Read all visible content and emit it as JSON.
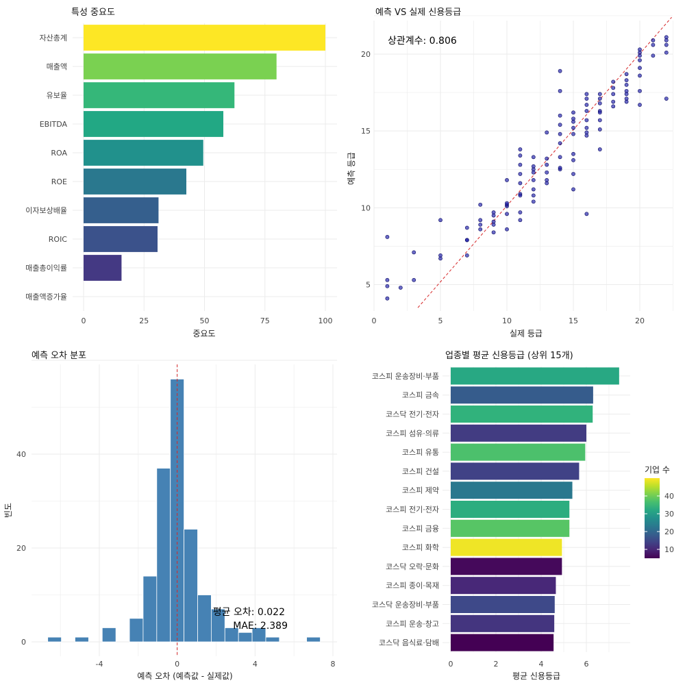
{
  "chart_data": [
    {
      "type": "bar",
      "orientation": "horizontal",
      "title": "특성 중요도",
      "xlabel": "중요도",
      "ylabel": "",
      "xlim": [
        0,
        100
      ],
      "xticks": [
        0,
        25,
        50,
        75,
        100
      ],
      "categories": [
        "자산총계",
        "매출액",
        "유보율",
        "EBITDA",
        "ROA",
        "ROE",
        "이자보상배율",
        "ROIC",
        "매출총이익률",
        "매출액증가율"
      ],
      "values": [
        100,
        79.8,
        62.4,
        57.8,
        49.5,
        42.5,
        31,
        30.6,
        15.7,
        0
      ],
      "colors": [
        "#fde725",
        "#7ad151",
        "#35b779",
        "#22a884",
        "#21918c",
        "#2a788e",
        "#355f8d",
        "#3b528b",
        "#443983",
        "#440154"
      ],
      "grid": true
    },
    {
      "type": "scatter",
      "title": "예측 VS 실제 신용등급",
      "xlabel": "실제 등급",
      "ylabel": "예측 등급",
      "xlim": [
        0,
        22.5
      ],
      "ylim": [
        3.5,
        22.5
      ],
      "xticks": [
        0,
        5,
        10,
        15,
        20
      ],
      "yticks": [
        5,
        10,
        15,
        20
      ],
      "annotation": "상관계수: 0.806",
      "reference_line": "y = x",
      "point_color": "#1a1aa8",
      "grid": true,
      "points": [
        [
          1,
          8.1
        ],
        [
          1,
          5.3
        ],
        [
          1,
          4.9
        ],
        [
          1,
          4.1
        ],
        [
          2,
          4.8
        ],
        [
          3,
          7.1
        ],
        [
          3,
          5.3
        ],
        [
          5,
          9.2
        ],
        [
          5,
          6.7
        ],
        [
          5,
          6.9
        ],
        [
          7,
          7.9
        ],
        [
          7,
          7.9
        ],
        [
          7,
          8.7
        ],
        [
          7,
          6.9
        ],
        [
          8,
          8.6
        ],
        [
          8,
          9.2
        ],
        [
          8,
          10.2
        ],
        [
          8,
          8.9
        ],
        [
          9,
          9.7
        ],
        [
          9,
          9.5
        ],
        [
          9,
          9.1
        ],
        [
          9,
          8.9
        ],
        [
          9,
          8.4
        ],
        [
          10,
          10.1
        ],
        [
          10,
          10.2
        ],
        [
          10,
          10.3
        ],
        [
          10,
          11.8
        ],
        [
          10,
          9.6
        ],
        [
          10,
          8.6
        ],
        [
          11,
          9.7
        ],
        [
          11,
          10.9
        ],
        [
          11,
          11.6
        ],
        [
          11,
          10.8
        ],
        [
          11,
          12.2
        ],
        [
          11,
          13.4
        ],
        [
          11,
          13.8
        ],
        [
          11,
          12.8
        ],
        [
          11,
          9.2
        ],
        [
          12,
          11.2
        ],
        [
          12,
          11.8
        ],
        [
          12,
          12.3
        ],
        [
          12,
          12.5
        ],
        [
          12,
          12.7
        ],
        [
          12,
          13.3
        ],
        [
          12,
          10.8
        ],
        [
          12,
          10.4
        ],
        [
          13,
          11.6
        ],
        [
          13,
          12.3
        ],
        [
          13,
          12.8
        ],
        [
          13,
          13.2
        ],
        [
          13,
          11.8
        ],
        [
          13,
          14.9
        ],
        [
          14,
          12.5
        ],
        [
          14,
          13.3
        ],
        [
          14,
          14.2
        ],
        [
          14,
          14.8
        ],
        [
          14,
          16.0
        ],
        [
          14,
          15.4
        ],
        [
          14,
          18.9
        ],
        [
          14,
          17.6
        ],
        [
          14,
          12.6
        ],
        [
          15,
          15.2
        ],
        [
          15,
          16.2
        ],
        [
          15,
          15.6
        ],
        [
          15,
          14.8
        ],
        [
          15,
          13.5
        ],
        [
          15,
          13.1
        ],
        [
          15,
          12.2
        ],
        [
          15,
          11.2
        ],
        [
          15,
          15.8
        ],
        [
          16,
          17.4
        ],
        [
          16,
          16.7
        ],
        [
          16,
          15.2
        ],
        [
          16,
          14.9
        ],
        [
          16,
          16.3
        ],
        [
          16,
          17.1
        ],
        [
          16,
          15.7
        ],
        [
          16,
          9.6
        ],
        [
          16,
          14.7
        ],
        [
          17,
          17.4
        ],
        [
          17,
          16.8
        ],
        [
          17,
          16.3
        ],
        [
          17,
          15.7
        ],
        [
          17,
          15.1
        ],
        [
          17,
          13.8
        ],
        [
          17,
          17.1
        ],
        [
          17,
          16.2
        ],
        [
          18,
          17.4
        ],
        [
          18,
          16.9
        ],
        [
          18,
          16.6
        ],
        [
          18,
          17.8
        ],
        [
          18,
          18.2
        ],
        [
          19,
          17.6
        ],
        [
          19,
          18.0
        ],
        [
          19,
          18.3
        ],
        [
          19,
          18.7
        ],
        [
          19,
          17.1
        ],
        [
          19,
          16.9
        ],
        [
          19,
          17.4
        ],
        [
          20,
          19.6
        ],
        [
          20,
          20.1
        ],
        [
          20,
          19.1
        ],
        [
          20,
          18.6
        ],
        [
          20,
          20.3
        ],
        [
          20,
          17.6
        ],
        [
          20,
          16.7
        ],
        [
          20,
          19.9
        ],
        [
          21,
          20.6
        ],
        [
          21,
          20.9
        ],
        [
          21,
          19.9
        ],
        [
          22,
          21.1
        ],
        [
          22,
          20.6
        ],
        [
          22,
          17.1
        ],
        [
          22,
          20.1
        ],
        [
          22,
          20.9
        ]
      ]
    },
    {
      "type": "bar",
      "subtype": "histogram",
      "title": "예측 오차 분포",
      "xlabel": "예측 오차 (예측값 - 실제값)",
      "ylabel": "빈도",
      "xlim": [
        -7.5,
        8
      ],
      "ylim": [
        0,
        60
      ],
      "xticks": [
        -4,
        0,
        4,
        8
      ],
      "yticks": [
        0,
        20,
        40
      ],
      "bar_color": "#4682b4",
      "reference_line_x": 0,
      "annotation_mean": "평균 오차: 0.022",
      "annotation_mae": "MAE: 2.389",
      "bin_width": 0.7,
      "bin_centers": [
        -6.3,
        -4.9,
        -3.5,
        -2.1,
        -1.4,
        -0.7,
        0,
        0.7,
        1.4,
        2.1,
        2.8,
        3.5,
        4.2,
        4.9,
        7.0
      ],
      "values": [
        1,
        1,
        3,
        5,
        14,
        37,
        56,
        24,
        10,
        7,
        3,
        2,
        3,
        1,
        1
      ],
      "grid": true
    },
    {
      "type": "bar",
      "orientation": "horizontal",
      "title": "업종별 평균 신용등급 (상위 15개)",
      "xlabel": "평균 신용등급",
      "ylabel": "",
      "xlim": [
        0,
        7.6
      ],
      "xticks": [
        0,
        2,
        4,
        6
      ],
      "categories": [
        "코스피 운송장비·부품",
        "코스피 금속",
        "코스닥 전기·전자",
        "코스피 섬유·의류",
        "코스피 유통",
        "코스피 건설",
        "코스피 제약",
        "코스피 전기·전자",
        "코스피 금융",
        "코스피 화학",
        "코스닥 오락·문화",
        "코스피 종이·목재",
        "코스닥 운송장비·부품",
        "코스피 운송·창고",
        "코스닥 음식료·담배"
      ],
      "values": [
        7.45,
        6.3,
        6.28,
        6.0,
        5.95,
        5.68,
        5.38,
        5.25,
        5.25,
        4.92,
        4.92,
        4.65,
        4.6,
        4.58,
        4.55
      ],
      "company_counts": [
        32,
        18,
        34,
        13,
        37,
        14,
        23,
        33,
        38,
        49,
        6,
        10,
        15,
        12,
        5
      ],
      "legend": {
        "title": "기업 수",
        "ticks": [
          10,
          20,
          30,
          40
        ],
        "range": [
          5,
          50
        ],
        "placement": "right"
      },
      "grid": true
    }
  ]
}
